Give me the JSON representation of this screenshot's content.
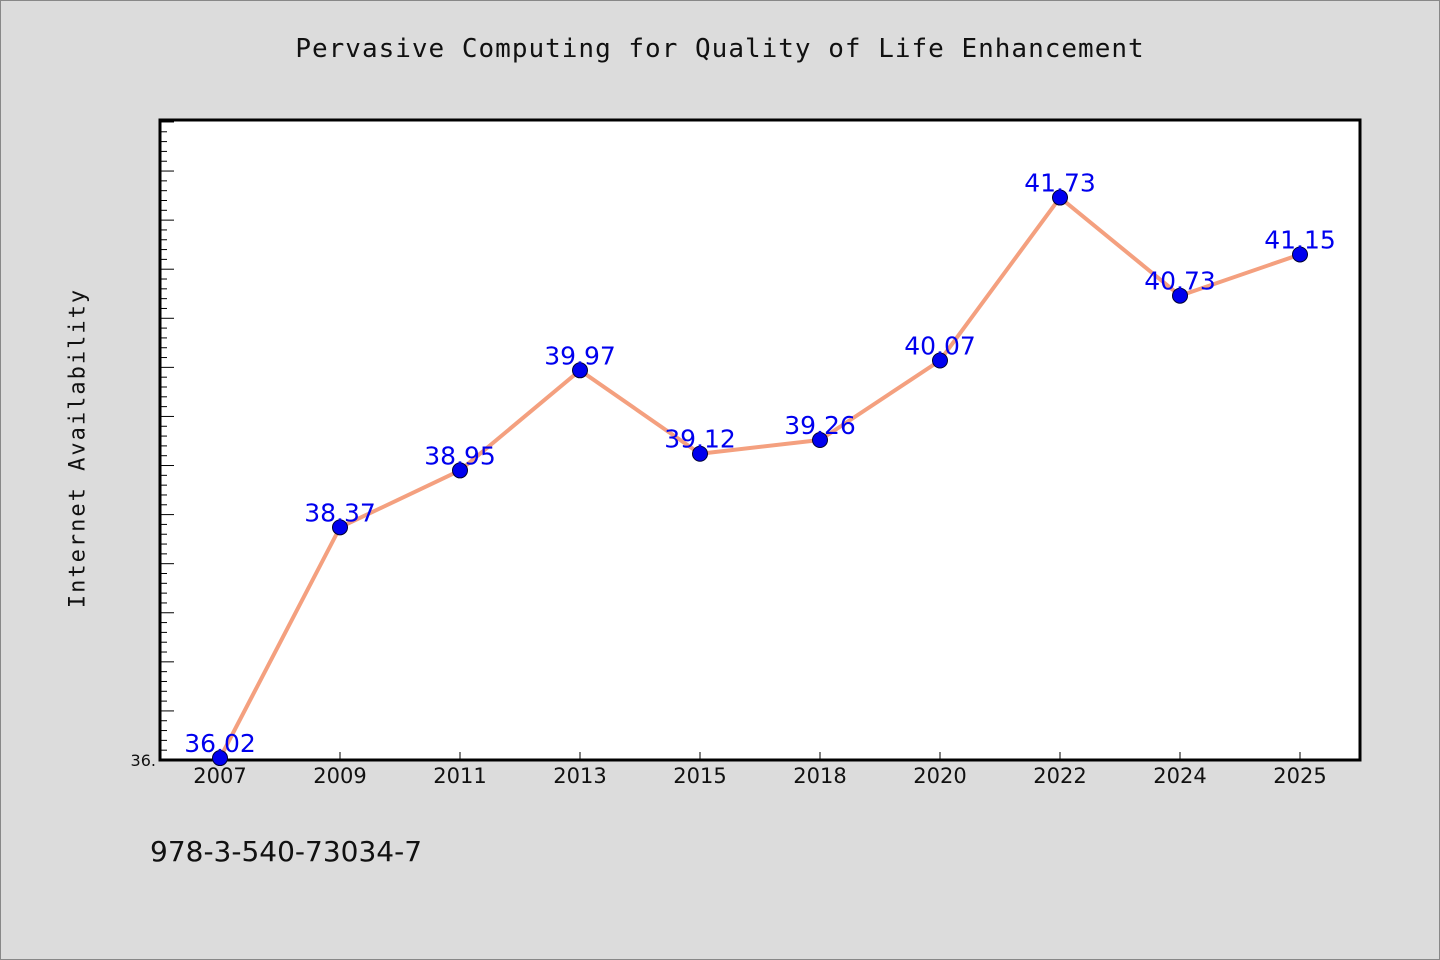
{
  "title": "Pervasive Computing for Quality of Life Enhancement",
  "footer_code": "978-3-540-73034-7",
  "colors": {
    "background": "#dcdcdc",
    "plot_background": "#ffffff",
    "line": "#f4a07f",
    "marker": "#0000ee",
    "data_label": "#0000ee"
  },
  "chart_data": {
    "type": "line",
    "title": "Pervasive Computing for Quality of Life Enhancement",
    "xlabel": "",
    "ylabel": "Internet Availability",
    "categories": [
      "2007",
      "2009",
      "2011",
      "2013",
      "2015",
      "2018",
      "2020",
      "2022",
      "2024",
      "2025"
    ],
    "series": [
      {
        "values": [
          36.02,
          38.37,
          38.95,
          39.97,
          39.12,
          39.26,
          40.07,
          41.73,
          40.73,
          41.15
        ],
        "labels": [
          "36.02",
          "38.37",
          "38.95",
          "39.97",
          "39.12",
          "39.26",
          "40.07",
          "41.73",
          "40.73",
          "41.15"
        ]
      }
    ],
    "ylim": [
      36.0,
      42.52
    ],
    "y_tick_labels": [
      "36."
    ],
    "y_minor_tick_step": 0.1,
    "y_major_tick_step": 0.5,
    "grid": false,
    "legend": "none"
  }
}
